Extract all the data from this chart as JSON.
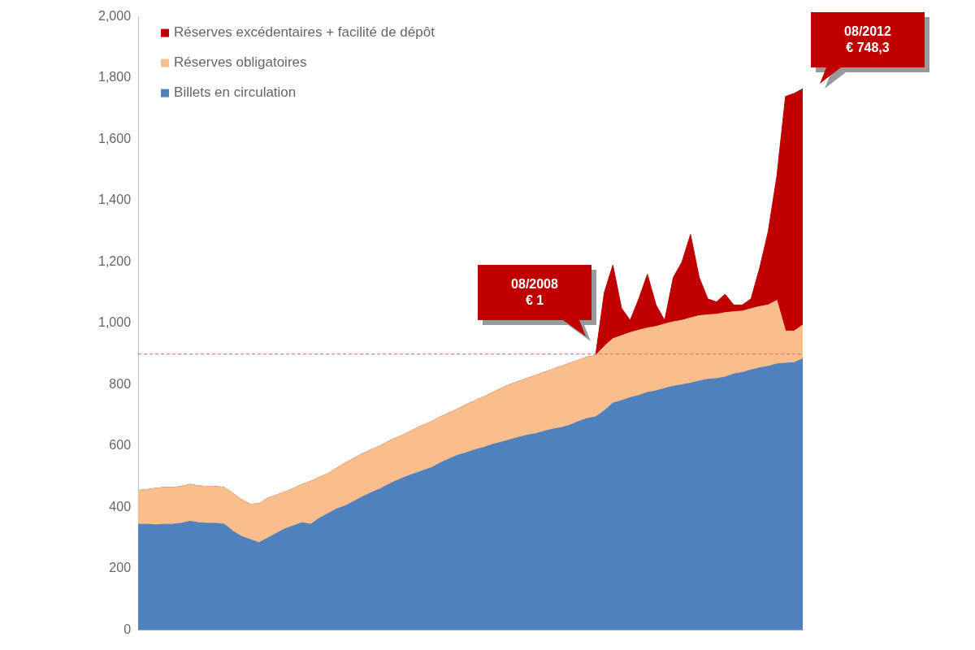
{
  "chart_data": {
    "type": "area",
    "stacked": true,
    "categories": [
      null,
      null,
      null,
      null,
      null,
      null,
      null,
      null,
      null,
      null,
      null,
      null,
      null,
      null,
      null,
      null,
      null,
      null,
      null,
      null,
      null,
      null,
      null,
      null,
      null,
      null,
      null,
      null,
      null,
      null,
      null,
      null,
      null,
      null,
      null,
      null,
      null,
      null,
      null,
      null,
      null,
      null,
      null,
      null,
      null,
      null,
      null,
      null,
      null,
      null,
      null,
      null,
      null,
      null,
      null,
      null,
      null,
      null,
      null,
      null,
      null,
      null,
      null,
      null,
      null,
      null,
      null,
      null,
      null,
      null,
      null,
      null,
      null,
      null,
      null,
      null,
      null,
      null
    ],
    "series": [
      {
        "name": "Billets en circulation",
        "color": "#4f81bd",
        "values": [
          345,
          345,
          343,
          345,
          345,
          348,
          355,
          350,
          348,
          348,
          345,
          322,
          305,
          295,
          285,
          300,
          315,
          330,
          340,
          350,
          345,
          365,
          380,
          395,
          405,
          420,
          435,
          448,
          460,
          475,
          488,
          500,
          510,
          520,
          530,
          545,
          558,
          570,
          578,
          588,
          595,
          605,
          612,
          620,
          628,
          635,
          640,
          648,
          655,
          660,
          668,
          680,
          690,
          695,
          715,
          740,
          748,
          758,
          765,
          775,
          780,
          788,
          795,
          800,
          805,
          812,
          818,
          820,
          825,
          835,
          840,
          848,
          855,
          860,
          868,
          870,
          872,
          885
        ]
      },
      {
        "name": "Réserves obligatoires",
        "color": "#f9be8c",
        "values": [
          110,
          113,
          119,
          120,
          120,
          120,
          120,
          120,
          120,
          120,
          120,
          123,
          120,
          115,
          127,
          130,
          125,
          120,
          122,
          125,
          140,
          133,
          130,
          133,
          140,
          140,
          140,
          140,
          140,
          140,
          140,
          140,
          145,
          148,
          150,
          150,
          150,
          150,
          157,
          160,
          165,
          168,
          175,
          180,
          182,
          185,
          190,
          192,
          195,
          200,
          202,
          200,
          200,
          200,
          210,
          210,
          212,
          212,
          213,
          210,
          210,
          210,
          210,
          210,
          213,
          213,
          210,
          210,
          210,
          203,
          200,
          200,
          200,
          200,
          207,
          105,
          103,
          110
        ]
      },
      {
        "name": "Réserves excédentaires + facilité de dépôt",
        "color": "#c00000",
        "values": [
          0,
          0,
          0,
          0,
          0,
          0,
          0,
          0,
          0,
          0,
          0,
          0,
          0,
          0,
          0,
          0,
          0,
          0,
          0,
          0,
          0,
          0,
          0,
          0,
          0,
          0,
          0,
          0,
          0,
          0,
          0,
          0,
          0,
          0,
          0,
          0,
          0,
          0,
          0,
          0,
          0,
          0,
          0,
          0,
          0,
          0,
          0,
          0,
          0,
          0,
          0,
          0,
          0,
          0,
          175,
          240,
          90,
          40,
          102,
          175,
          70,
          12,
          145,
          190,
          272,
          125,
          52,
          40,
          60,
          22,
          20,
          32,
          125,
          240,
          405,
          765,
          775,
          770
        ]
      }
    ],
    "ylim": [
      0,
      2000
    ],
    "yticks": [
      0,
      200,
      400,
      600,
      800,
      {
        "value": 1000,
        "label": "1,000"
      },
      {
        "value": 1200,
        "label": "1,200"
      },
      {
        "value": 1400,
        "label": "1,400"
      },
      {
        "value": 1600,
        "label": "1,600"
      },
      {
        "value": 1800,
        "label": "1,800"
      },
      {
        "value": 2000,
        "label": "2,000"
      }
    ],
    "tick_labels": "y",
    "grid": false,
    "legend": "top left",
    "ref_lines": [
      {
        "axis": "y",
        "value": 900,
        "color": "#e06666",
        "line_style": "dashed"
      }
    ],
    "annotations": [
      "08/2008\n€ 1",
      "08/2012\n€ 748,3"
    ]
  }
}
